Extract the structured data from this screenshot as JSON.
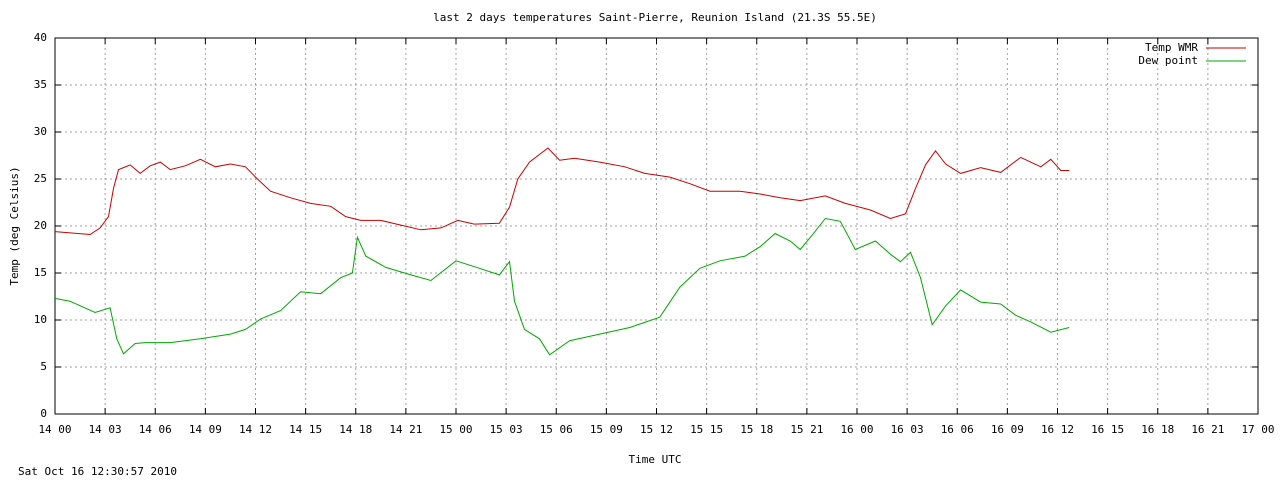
{
  "chart_data": {
    "type": "line",
    "title": "last 2 days temperatures Saint-Pierre, Reunion Island (21.3S 55.5E)",
    "xlabel": "Time UTC",
    "ylabel": "Temp (deg Celsius)",
    "footer": "Sat Oct 16 12:30:57 2010",
    "xlim": [
      0,
      72
    ],
    "xticks": [
      {
        "value": 0,
        "label": "14 00"
      },
      {
        "value": 3,
        "label": "14 03"
      },
      {
        "value": 6,
        "label": "14 06"
      },
      {
        "value": 9,
        "label": "14 09"
      },
      {
        "value": 12,
        "label": "14 12"
      },
      {
        "value": 15,
        "label": "14 15"
      },
      {
        "value": 18,
        "label": "14 18"
      },
      {
        "value": 21,
        "label": "14 21"
      },
      {
        "value": 24,
        "label": "15 00"
      },
      {
        "value": 27,
        "label": "15 03"
      },
      {
        "value": 30,
        "label": "15 06"
      },
      {
        "value": 33,
        "label": "15 09"
      },
      {
        "value": 36,
        "label": "15 12"
      },
      {
        "value": 39,
        "label": "15 15"
      },
      {
        "value": 42,
        "label": "15 18"
      },
      {
        "value": 45,
        "label": "15 21"
      },
      {
        "value": 48,
        "label": "16 00"
      },
      {
        "value": 51,
        "label": "16 03"
      },
      {
        "value": 54,
        "label": "16 06"
      },
      {
        "value": 57,
        "label": "16 09"
      },
      {
        "value": 60,
        "label": "16 12"
      },
      {
        "value": 63,
        "label": "16 15"
      },
      {
        "value": 66,
        "label": "16 18"
      },
      {
        "value": 69,
        "label": "16 21"
      },
      {
        "value": 72,
        "label": "17 00"
      }
    ],
    "ylim": [
      0,
      40
    ],
    "yticks": [
      0,
      5,
      10,
      15,
      20,
      25,
      30,
      35,
      40
    ],
    "grid": true,
    "legend": "top-right",
    "series": [
      {
        "name": "Temp WMR",
        "color": "#cc0000",
        "x": [
          0,
          2.1,
          2.7,
          3.2,
          3.5,
          3.8,
          4.5,
          5.1,
          5.7,
          6.3,
          6.9,
          7.8,
          8.7,
          9.6,
          10.5,
          11.4,
          12,
          12.9,
          14.1,
          15.3,
          16.5,
          17.4,
          18.3,
          19.5,
          20.7,
          21.9,
          23.1,
          24.1,
          25.1,
          26.6,
          27.2,
          27.7,
          28.4,
          29.5,
          30.2,
          31.1,
          32.6,
          34.1,
          35.3,
          36.8,
          38,
          39.2,
          41,
          42.2,
          43.4,
          44.6,
          46.1,
          47.3,
          48.8,
          50,
          50.9,
          51.5,
          52.1,
          52.7,
          53.3,
          54.2,
          55.4,
          56.6,
          57.8,
          59,
          59.6,
          60.2,
          60.7
        ],
        "values": [
          19.4,
          19.1,
          19.8,
          21,
          24,
          26,
          26.5,
          25.6,
          26.4,
          26.8,
          26,
          26.4,
          27.1,
          26.3,
          26.6,
          26.3,
          25.2,
          23.7,
          23,
          22.4,
          22.1,
          21,
          20.6,
          20.6,
          20.1,
          19.6,
          19.8,
          20.6,
          20.2,
          20.3,
          22,
          25,
          26.8,
          28.3,
          27,
          27.2,
          26.8,
          26.3,
          25.6,
          25.2,
          24.5,
          23.7,
          23.7,
          23.4,
          23,
          22.7,
          23.2,
          22.4,
          21.7,
          20.8,
          21.3,
          24,
          26.5,
          28,
          26.6,
          25.6,
          26.2,
          25.7,
          27.3,
          26.3,
          27.1,
          25.9,
          25.9
        ]
      },
      {
        "name": "Dew point",
        "color": "#00aa00",
        "x": [
          0,
          0.9,
          2.4,
          3.3,
          3.7,
          4.1,
          4.8,
          5.4,
          6.9,
          8.7,
          10.5,
          11.4,
          12.3,
          13.5,
          14.7,
          15.9,
          17.1,
          17.8,
          18.1,
          18.6,
          19.8,
          21.3,
          22.5,
          24,
          25.4,
          26.6,
          27.2,
          27.5,
          28.1,
          29,
          29.6,
          30.8,
          32.6,
          34.4,
          36.2,
          37.4,
          38.6,
          39.8,
          41.3,
          42.2,
          43.1,
          44,
          44.6,
          45.3,
          46.1,
          47,
          47.9,
          49.1,
          50,
          50.6,
          51.2,
          51.8,
          52.5,
          53.3,
          54.2,
          55.4,
          56.6,
          57.5,
          58.4,
          59.6,
          60.7
        ],
        "values": [
          12.3,
          12,
          10.8,
          11.3,
          8,
          6.4,
          7.5,
          7.6,
          7.6,
          8,
          8.5,
          9,
          10.1,
          11,
          13,
          12.8,
          14.5,
          15,
          18.8,
          16.8,
          15.6,
          14.8,
          14.2,
          16.3,
          15.5,
          14.8,
          16.2,
          12,
          9,
          8,
          6.3,
          7.8,
          8.5,
          9.2,
          10.3,
          13.5,
          15.5,
          16.3,
          16.8,
          17.8,
          19.2,
          18.4,
          17.5,
          19,
          20.8,
          20.5,
          17.5,
          18.4,
          17,
          16.2,
          17.2,
          14.5,
          9.5,
          11.5,
          13.2,
          11.9,
          11.7,
          10.5,
          9.8,
          8.7,
          9.2
        ]
      }
    ]
  }
}
